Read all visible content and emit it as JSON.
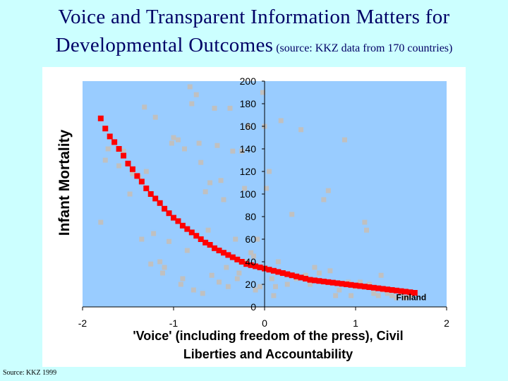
{
  "title": {
    "line1": "Voice and Transparent Information Matters for",
    "line2_main": "Developmental Outcomes",
    "line2_source": " (source:  KKZ data from 170 countries)"
  },
  "source_note": "Source: KKZ 1999",
  "colors": {
    "background": "#ccffff",
    "title": "#000066",
    "plot_area": "#99ccff",
    "scatter_points": "#c0c0c0",
    "fit_curve": "#ff0000"
  },
  "chart_data": {
    "type": "scatter",
    "title": "",
    "xlabel_line1": "'Voice' (including freedom of the press), Civil",
    "xlabel_line2": "Liberties and Accountability",
    "ylabel": "Infant Mortality",
    "xlim": [
      -2,
      2
    ],
    "ylim": [
      0,
      200
    ],
    "x_ticks": [
      "-2",
      "-1",
      "0",
      "1",
      "2"
    ],
    "y_ticks": [
      "0",
      "20",
      "40",
      "60",
      "80",
      "100",
      "120",
      "140",
      "160",
      "180",
      "200"
    ],
    "grid": false,
    "annotation": {
      "text": "Finland",
      "x": 1.72,
      "y": 4
    },
    "series": [
      {
        "kind": "scatter",
        "points": [
          [
            -1.8,
            75
          ],
          [
            -1.75,
            130
          ],
          [
            -1.72,
            140
          ],
          [
            -1.6,
            125
          ],
          [
            -1.55,
            138
          ],
          [
            -1.48,
            100
          ],
          [
            -1.45,
            118
          ],
          [
            -1.38,
            115
          ],
          [
            -1.35,
            60
          ],
          [
            -1.32,
            177
          ],
          [
            -1.3,
            120
          ],
          [
            -1.25,
            38
          ],
          [
            -1.22,
            65
          ],
          [
            -1.2,
            168
          ],
          [
            -1.15,
            40
          ],
          [
            -1.12,
            30
          ],
          [
            -1.1,
            35
          ],
          [
            -1.05,
            58
          ],
          [
            -1.02,
            145
          ],
          [
            -1.0,
            150
          ],
          [
            -0.95,
            148
          ],
          [
            -0.92,
            20
          ],
          [
            -0.9,
            25
          ],
          [
            -0.88,
            140
          ],
          [
            -0.85,
            50
          ],
          [
            -0.82,
            195
          ],
          [
            -0.8,
            180
          ],
          [
            -0.78,
            15
          ],
          [
            -0.75,
            188
          ],
          [
            -0.72,
            145
          ],
          [
            -0.7,
            128
          ],
          [
            -0.68,
            12
          ],
          [
            -0.65,
            102
          ],
          [
            -0.62,
            68
          ],
          [
            -0.6,
            110
          ],
          [
            -0.58,
            28
          ],
          [
            -0.55,
            176
          ],
          [
            -0.52,
            143
          ],
          [
            -0.5,
            22
          ],
          [
            -0.48,
            112
          ],
          [
            -0.45,
            95
          ],
          [
            -0.42,
            35
          ],
          [
            -0.4,
            18
          ],
          [
            -0.38,
            176
          ],
          [
            -0.35,
            138
          ],
          [
            -0.32,
            60
          ],
          [
            -0.3,
            25
          ],
          [
            -0.28,
            30
          ],
          [
            -0.25,
            138
          ],
          [
            -0.22,
            105
          ],
          [
            -0.2,
            40
          ],
          [
            -0.18,
            160
          ],
          [
            -0.15,
            48
          ],
          [
            -0.12,
            45
          ],
          [
            -0.1,
            15
          ],
          [
            -0.08,
            60
          ],
          [
            -0.05,
            18
          ],
          [
            -0.02,
            190
          ],
          [
            0.0,
            160
          ],
          [
            0.02,
            105
          ],
          [
            0.05,
            120
          ],
          [
            0.08,
            25
          ],
          [
            0.1,
            10
          ],
          [
            0.12,
            18
          ],
          [
            0.15,
            40
          ],
          [
            0.18,
            165
          ],
          [
            0.2,
            30
          ],
          [
            0.25,
            20
          ],
          [
            0.3,
            82
          ],
          [
            0.35,
            25
          ],
          [
            0.4,
            157
          ],
          [
            0.45,
            28
          ],
          [
            0.5,
            20
          ],
          [
            0.55,
            35
          ],
          [
            0.6,
            30
          ],
          [
            0.65,
            95
          ],
          [
            0.7,
            103
          ],
          [
            0.72,
            32
          ],
          [
            0.78,
            10
          ],
          [
            0.82,
            15
          ],
          [
            0.88,
            148
          ],
          [
            0.92,
            22
          ],
          [
            0.95,
            10
          ],
          [
            1.0,
            18
          ],
          [
            1.05,
            22
          ],
          [
            1.1,
            75
          ],
          [
            1.12,
            68
          ],
          [
            1.15,
            20
          ],
          [
            1.2,
            12
          ],
          [
            1.25,
            10
          ],
          [
            1.28,
            28
          ],
          [
            1.3,
            15
          ],
          [
            1.35,
            12
          ],
          [
            1.4,
            10
          ],
          [
            1.45,
            8
          ],
          [
            1.5,
            12
          ],
          [
            1.55,
            8
          ],
          [
            1.6,
            10
          ]
        ]
      },
      {
        "kind": "line",
        "points": [
          [
            -1.8,
            167
          ],
          [
            -1.75,
            158
          ],
          [
            -1.7,
            151
          ],
          [
            -1.65,
            146
          ],
          [
            -1.6,
            140
          ],
          [
            -1.55,
            134
          ],
          [
            -1.5,
            127
          ],
          [
            -1.45,
            122
          ],
          [
            -1.4,
            116
          ],
          [
            -1.35,
            111
          ],
          [
            -1.3,
            105
          ],
          [
            -1.25,
            100
          ],
          [
            -1.2,
            96
          ],
          [
            -1.15,
            92
          ],
          [
            -1.1,
            87
          ],
          [
            -1.05,
            83
          ],
          [
            -1.0,
            79
          ],
          [
            -0.95,
            76
          ],
          [
            -0.9,
            72
          ],
          [
            -0.85,
            69
          ],
          [
            -0.8,
            66
          ],
          [
            -0.75,
            63
          ],
          [
            -0.7,
            60
          ],
          [
            -0.65,
            57
          ],
          [
            -0.6,
            55
          ],
          [
            -0.55,
            52
          ],
          [
            -0.5,
            50
          ],
          [
            -0.45,
            48
          ],
          [
            -0.4,
            46
          ],
          [
            -0.35,
            44
          ],
          [
            -0.3,
            42
          ],
          [
            -0.25,
            40
          ],
          [
            -0.2,
            38
          ],
          [
            -0.15,
            37
          ],
          [
            -0.1,
            36
          ],
          [
            -0.05,
            35
          ],
          [
            0.0,
            34
          ],
          [
            0.05,
            33
          ],
          [
            0.1,
            32
          ],
          [
            0.15,
            31
          ],
          [
            0.2,
            30
          ],
          [
            0.25,
            29
          ],
          [
            0.3,
            28
          ],
          [
            0.35,
            27
          ],
          [
            0.4,
            26
          ],
          [
            0.45,
            25
          ],
          [
            0.5,
            24
          ],
          [
            0.55,
            23.5
          ],
          [
            0.6,
            23
          ],
          [
            0.65,
            22.5
          ],
          [
            0.7,
            22
          ],
          [
            0.75,
            21.5
          ],
          [
            0.8,
            21
          ],
          [
            0.85,
            20.5
          ],
          [
            0.9,
            20
          ],
          [
            0.95,
            19.5
          ],
          [
            1.0,
            19
          ],
          [
            1.05,
            18.5
          ],
          [
            1.1,
            18
          ],
          [
            1.15,
            17.5
          ],
          [
            1.2,
            17
          ],
          [
            1.25,
            16.5
          ],
          [
            1.3,
            16
          ],
          [
            1.35,
            15.5
          ],
          [
            1.4,
            15
          ],
          [
            1.45,
            14.5
          ],
          [
            1.5,
            14
          ],
          [
            1.55,
            13.5
          ],
          [
            1.6,
            13
          ],
          [
            1.65,
            12.5
          ]
        ]
      }
    ]
  }
}
